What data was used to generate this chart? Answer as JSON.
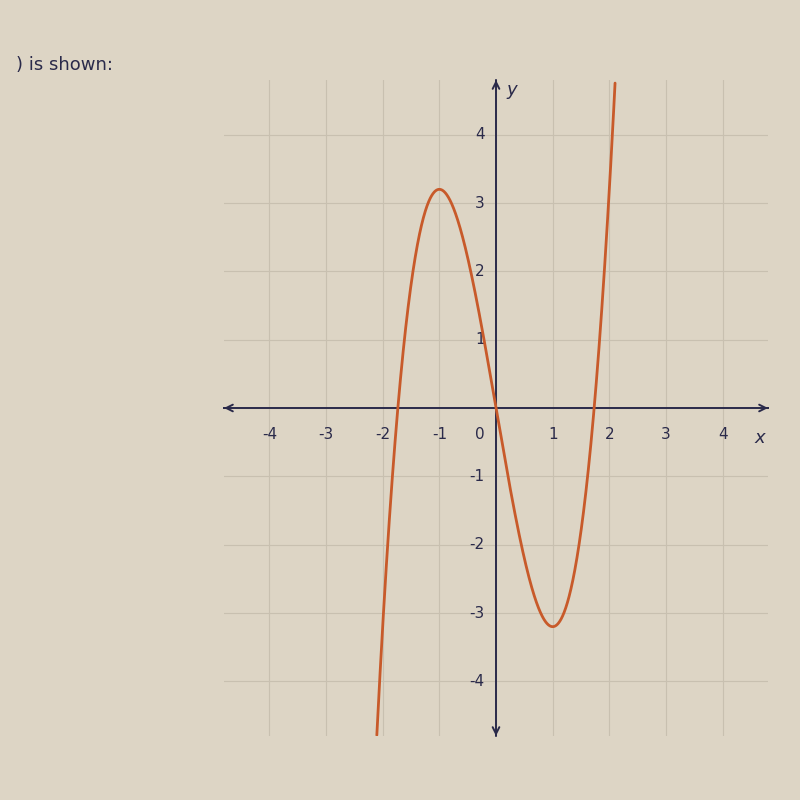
{
  "curve_color": "#C85A2A",
  "curve_linewidth": 2.0,
  "background_color": "#DDD5C5",
  "grid_color": "#C8C0B0",
  "a": 1.6,
  "b": -4.8,
  "xlim": [
    -4.8,
    4.8
  ],
  "ylim": [
    -4.8,
    4.8
  ],
  "xticks": [
    -4,
    -3,
    -2,
    -1,
    0,
    1,
    2,
    3,
    4
  ],
  "yticks": [
    -4,
    -3,
    -2,
    -1,
    0,
    1,
    2,
    3,
    4
  ],
  "x_start": -2.55,
  "x_end": 2.25,
  "axis_color": "#2a2a4a",
  "tick_fontsize": 11,
  "label_fontsize": 13,
  "annotation_text": ") is shown:",
  "text_color": "#2a2a4a"
}
